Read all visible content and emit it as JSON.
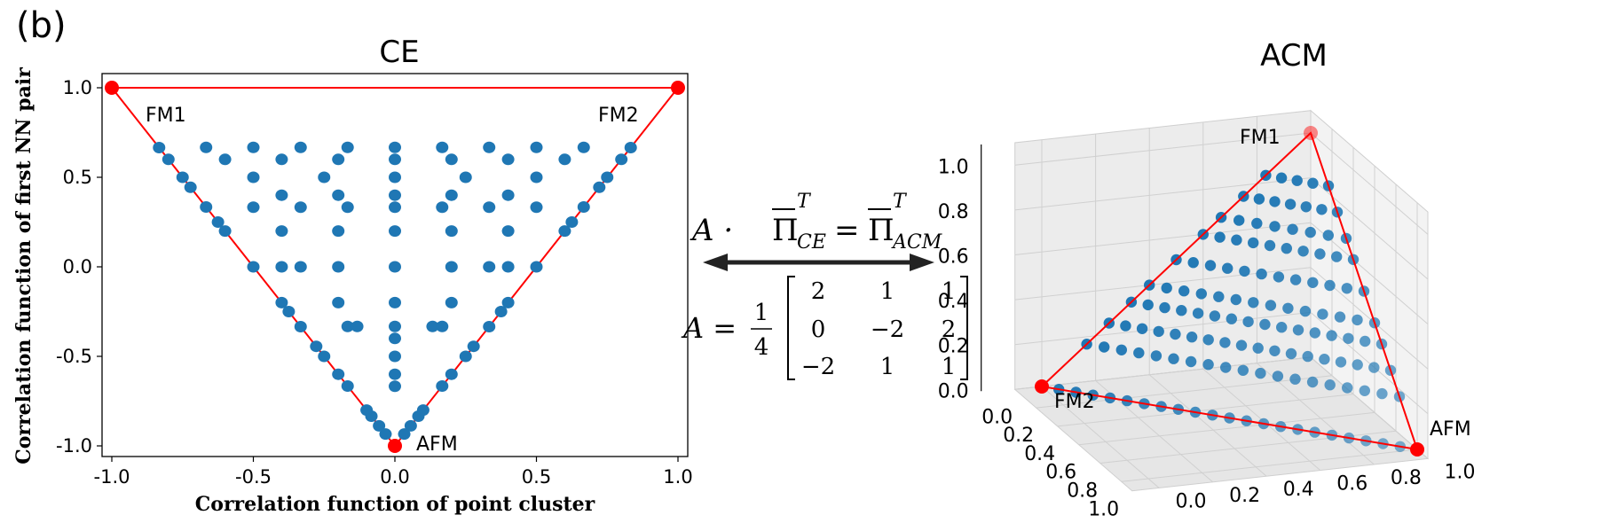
{
  "panel_label": "(b)",
  "colors": {
    "point": "#1f77b4",
    "boundary": "#ff0000",
    "pane": "#f2f2f2",
    "grid": "#d0d0d0"
  },
  "equation": {
    "eq_left": "A ·",
    "pi_ce": "Π",
    "pi_ce_sup": "T",
    "pi_ce_sub": "CE",
    "equals": "=",
    "pi_acm": "Π",
    "pi_acm_sup": "T",
    "pi_acm_sub": "ACM",
    "matrix_lhs": "A =",
    "frac_num": "1",
    "frac_den": "4",
    "matrix": [
      [
        "2",
        "1",
        "1"
      ],
      [
        "0",
        "−2",
        "2"
      ],
      [
        "−2",
        "1",
        "1"
      ]
    ]
  },
  "chart_data": [
    {
      "type": "scatter",
      "title": "CE",
      "xlabel": "Correlation function of point cluster",
      "ylabel": "Correlation function of first NN pair",
      "xlim": [
        -1.0,
        1.0
      ],
      "ylim": [
        -1.0,
        1.0
      ],
      "x_ticks": [
        "-1.0",
        "-0.5",
        "0.0",
        "0.5",
        "1.0"
      ],
      "y_ticks": [
        "-1.0",
        "-0.5",
        "0.0",
        "0.5",
        "1.0"
      ],
      "grid": false,
      "boundary": {
        "vertices": [
          {
            "label": "FM1",
            "x": -1.0,
            "y": 1.0
          },
          {
            "label": "FM2",
            "x": 1.0,
            "y": 1.0
          },
          {
            "label": "AFM",
            "x": 0.0,
            "y": -1.0
          }
        ]
      },
      "points_description": "Configuration samples filling the triangle; points on the left and right edges (y = -1 - 2x and y = -1 + 2x), interior rows at y = 0.667, 0.6, 0.5, 0.4, 0.333, 0.2, 0.0, -0.2, -0.333, -0.4, -0.5, -0.6, -0.667",
      "edge_points_x": [
        0.0,
        0.033,
        0.056,
        0.083,
        0.1,
        0.167,
        0.2,
        0.25,
        0.278,
        0.333,
        0.375,
        0.4,
        0.5,
        0.6,
        0.625,
        0.667,
        0.722,
        0.75,
        0.8,
        0.833
      ],
      "rows": [
        {
          "y": 0.667,
          "x": [
            -0.667,
            -0.5,
            -0.333,
            -0.167,
            0.0,
            0.167,
            0.333,
            0.5,
            0.667
          ]
        },
        {
          "y": 0.6,
          "x": [
            -0.6,
            -0.4,
            -0.2,
            0.0,
            0.2,
            0.4,
            0.6
          ]
        },
        {
          "y": 0.5,
          "x": [
            -0.5,
            -0.25,
            0.0,
            0.25,
            0.5
          ]
        },
        {
          "y": 0.4,
          "x": [
            -0.4,
            -0.2,
            0.0,
            0.2,
            0.4
          ]
        },
        {
          "y": 0.333,
          "x": [
            -0.5,
            -0.333,
            -0.167,
            0.0,
            0.167,
            0.333,
            0.5
          ]
        },
        {
          "y": 0.2,
          "x": [
            -0.4,
            -0.2,
            0.0,
            0.2,
            0.4
          ]
        },
        {
          "y": 0.0,
          "x": [
            -0.4,
            -0.333,
            -0.2,
            0.0,
            0.2,
            0.333,
            0.4
          ]
        },
        {
          "y": -0.2,
          "x": [
            -0.2,
            0.0,
            0.2
          ]
        },
        {
          "y": -0.333,
          "x": [
            -0.167,
            -0.133,
            0.0,
            0.133,
            0.167
          ]
        },
        {
          "y": -0.4,
          "x": [
            0.0
          ]
        },
        {
          "y": -0.5,
          "x": [
            0.0
          ]
        },
        {
          "y": -0.6,
          "x": [
            0.0
          ]
        },
        {
          "y": -0.667,
          "x": [
            0.0
          ]
        }
      ]
    },
    {
      "type": "scatter3d",
      "title": "ACM",
      "x_ticks": [
        "0.0",
        "0.2",
        "0.4",
        "0.6",
        "0.8",
        "1.0"
      ],
      "y_ticks": [
        "0.0",
        "0.2",
        "0.4",
        "0.6",
        "0.8",
        "1.0"
      ],
      "z_ticks": [
        "0.0",
        "0.2",
        "0.4",
        "0.6",
        "0.8",
        "1.0"
      ],
      "xlim": [
        0.0,
        1.0
      ],
      "ylim": [
        0.0,
        1.0
      ],
      "zlim": [
        0.0,
        1.0
      ],
      "grid": true,
      "boundary": {
        "vertices": [
          {
            "label": "FM1",
            "x": 0.0,
            "y": 0.0,
            "z": 1.0
          },
          {
            "label": "FM2",
            "x": 0.0,
            "y": 1.0,
            "z": 0.0
          },
          {
            "label": "AFM",
            "x": 1.0,
            "y": 0.0,
            "z": 0.0
          }
        ]
      },
      "points_description": "Points lie on the simplex x + y + z = 1 with z on a ladder of levels between 0 and 1",
      "z_levels": [
        0.0,
        0.167,
        0.25,
        0.333,
        0.4,
        0.5,
        0.6,
        0.667,
        0.75,
        0.833,
        1.0
      ]
    }
  ]
}
